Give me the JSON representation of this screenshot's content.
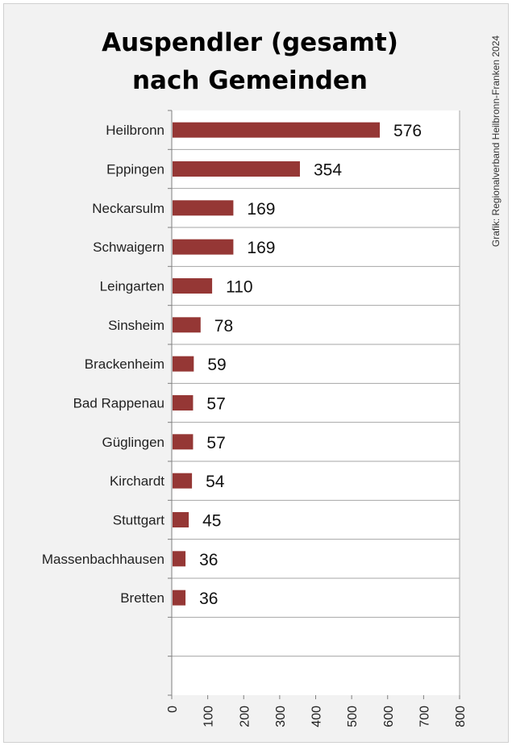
{
  "credit": "Grafik: Regionalverband Heilbronn-Franken 2024",
  "chart_data": {
    "type": "bar",
    "orientation": "horizontal",
    "title": [
      "Auspendler (gesamt)",
      "nach Gemeinden"
    ],
    "categories": [
      "Heilbronn",
      "Eppingen",
      "Neckarsulm",
      "Schwaigern",
      "Leingarten",
      "Sinsheim",
      "Brackenheim",
      "Bad Rappenau",
      "Güglingen",
      "Kirchardt",
      "Stuttgart",
      "Massenbachhausen",
      "Bretten",
      "",
      ""
    ],
    "values": [
      576,
      354,
      169,
      169,
      110,
      78,
      59,
      57,
      57,
      54,
      45,
      36,
      36,
      null,
      null
    ],
    "value_labels": [
      "576",
      "354",
      "169",
      "169",
      "110",
      "78",
      "59",
      "57",
      "57",
      "54",
      "45",
      "36",
      "36",
      "",
      ""
    ],
    "xlim": [
      0,
      800
    ],
    "xticks": [
      0,
      100,
      200,
      300,
      400,
      500,
      600,
      700,
      800
    ],
    "xtick_labels": [
      "0",
      "100",
      "200",
      "300",
      "400",
      "500",
      "600",
      "700",
      "800"
    ],
    "bar_color": "#953735",
    "grid": "horizontal",
    "legend": "none"
  }
}
